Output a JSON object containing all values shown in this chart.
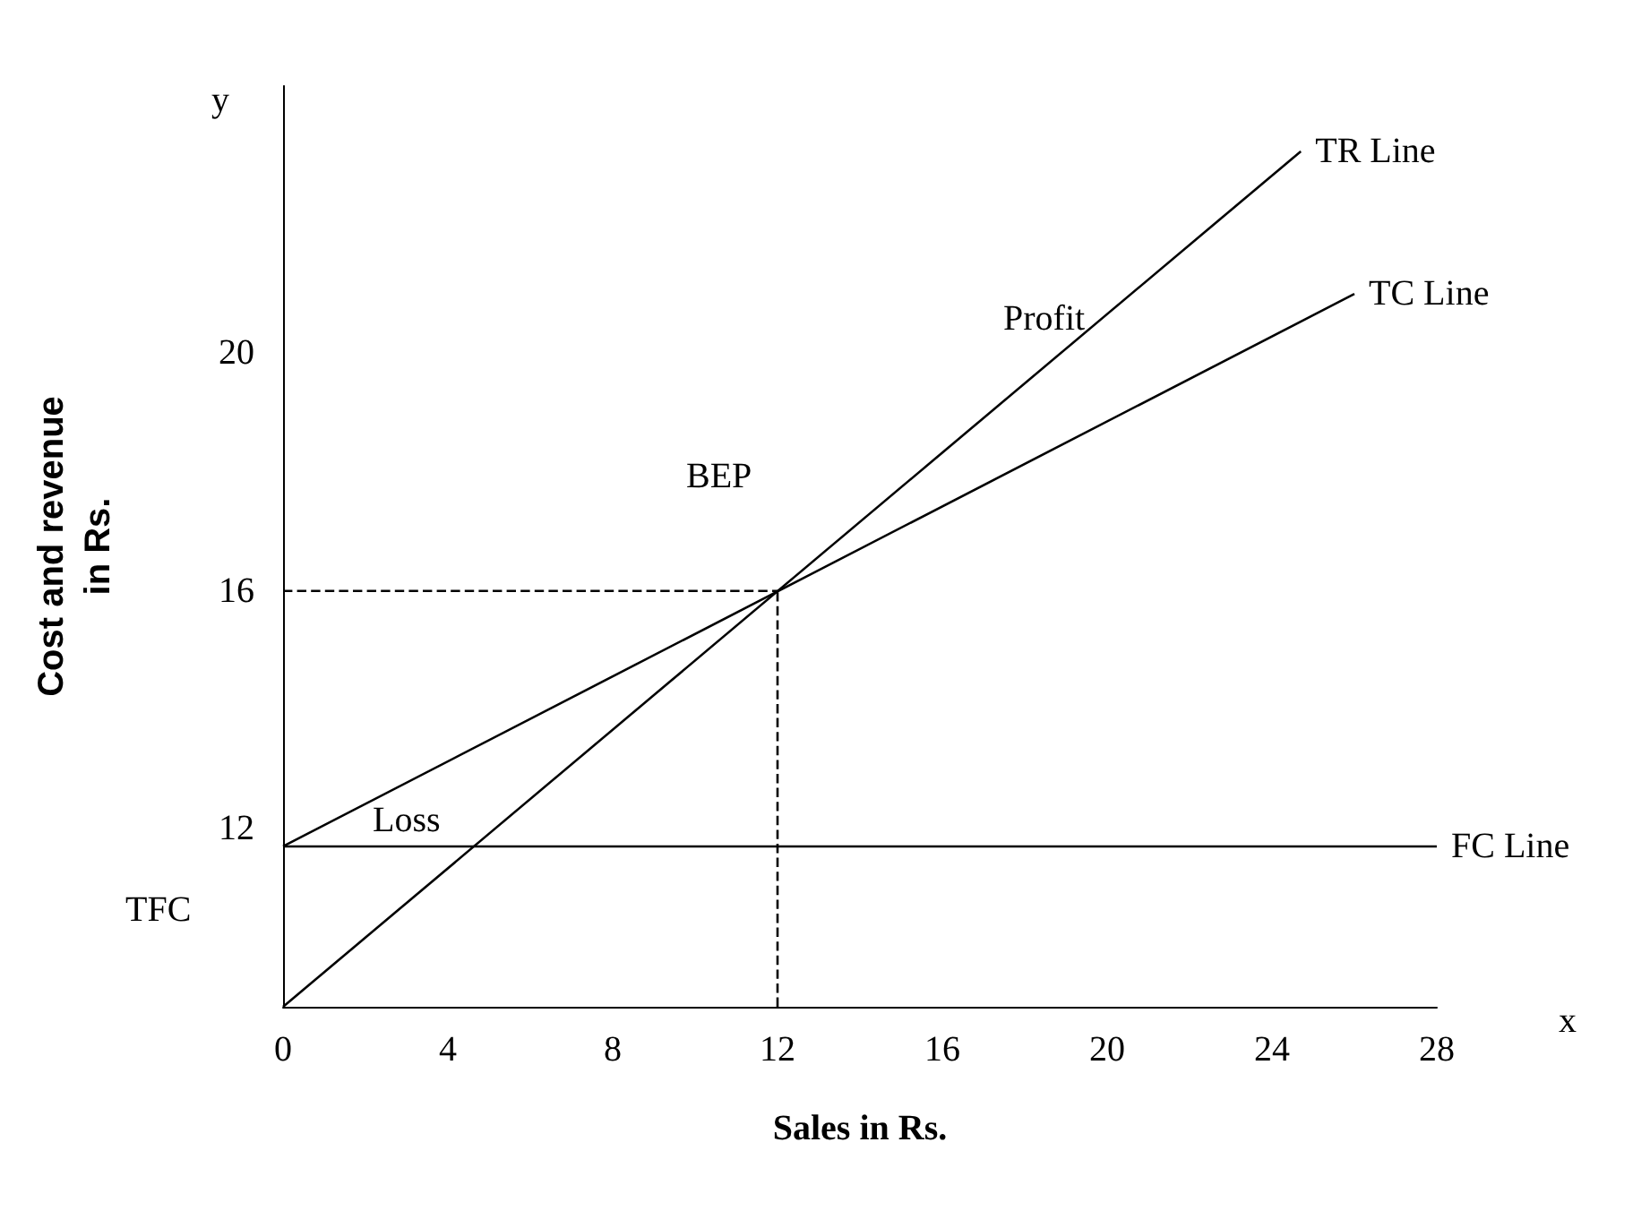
{
  "chart_data": {
    "type": "line",
    "xlabel": "Sales in Rs.",
    "ylabel": "Cost and revenue\nin Rs.",
    "xlim": [
      0,
      28
    ],
    "xticks": [
      0,
      4,
      8,
      12,
      16,
      20,
      24,
      28
    ],
    "ylim": [
      9,
      24.5
    ],
    "yticks": [
      12,
      16,
      20
    ],
    "grid": false,
    "legend": false,
    "marker": "none",
    "series": [
      {
        "name": "TR Line",
        "color": "#000000",
        "x": [
          0,
          24.7
        ],
        "values": [
          9,
          23.4
        ]
      },
      {
        "name": "TC Line",
        "color": "#000000",
        "x": [
          0,
          26
        ],
        "values": [
          11.7,
          21
        ]
      },
      {
        "name": "FC Line",
        "color": "#000000",
        "x": [
          0,
          28
        ],
        "values": [
          11.7,
          11.7
        ]
      },
      {
        "color": "#000000",
        "line_style": "dashed",
        "x": [
          0,
          12
        ],
        "values": [
          16,
          16
        ]
      },
      {
        "color": "#000000",
        "line_style": "dashed",
        "x": [
          12,
          12
        ],
        "values": [
          9,
          16
        ]
      }
    ],
    "annotations": [
      "BEP",
      "Profit",
      "Loss",
      "TFC",
      "y",
      "x"
    ]
  }
}
